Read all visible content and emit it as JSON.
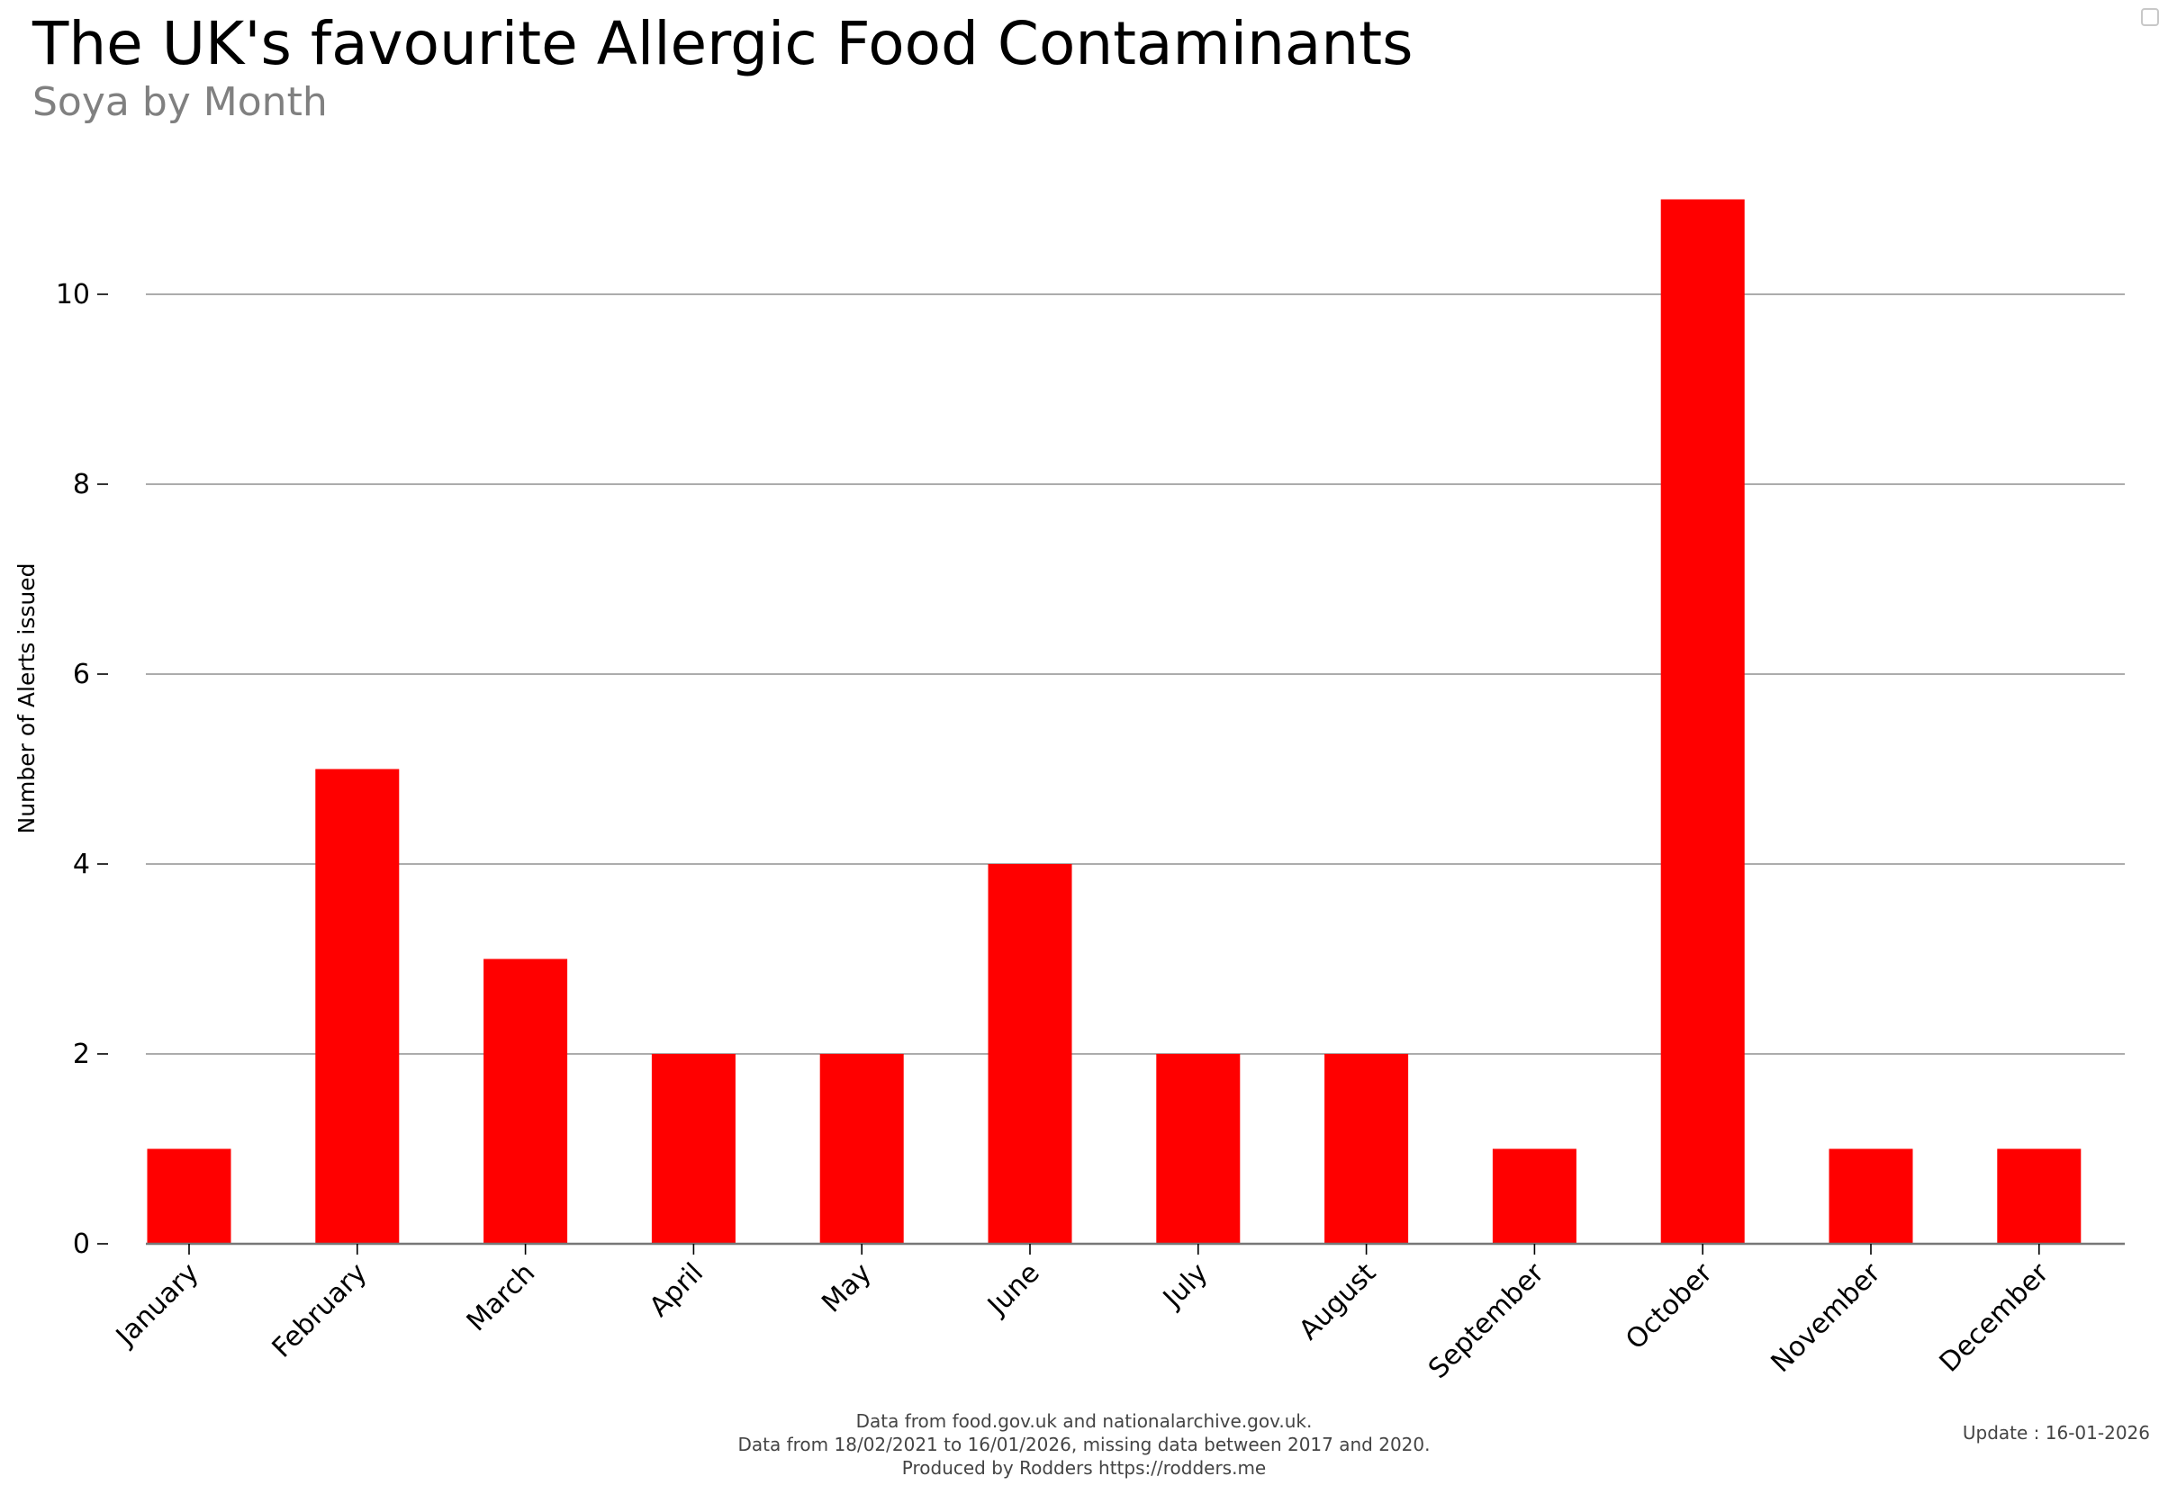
{
  "title": "The UK's favourite Allergic Food Contaminants",
  "subtitle": "Soya by Month",
  "footer": {
    "line1": "Data from food.gov.uk and nationalarchive.gov.uk.",
    "line2": "Data from 18/02/2021 to 16/01/2026, missing data between 2017 and 2020.",
    "line3": "Produced by Rodders https://rodders.me"
  },
  "update_text": "Update : 16-01-2026",
  "chart_data": {
    "type": "bar",
    "categories": [
      "January",
      "February",
      "March",
      "April",
      "May",
      "June",
      "July",
      "August",
      "September",
      "October",
      "November",
      "December"
    ],
    "values": [
      1,
      5,
      3,
      2,
      2,
      4,
      2,
      2,
      1,
      11,
      1,
      1
    ],
    "title": "The UK's favourite Allergic Food Contaminants",
    "subtitle": "Soya by Month",
    "xlabel": "",
    "ylabel": "Number of Alerts issued",
    "yticks": [
      0,
      2,
      4,
      6,
      8,
      10
    ],
    "ylim": [
      0,
      11.5
    ],
    "grid": true,
    "bar_color": "#ff0000",
    "grid_color": "#909090"
  }
}
